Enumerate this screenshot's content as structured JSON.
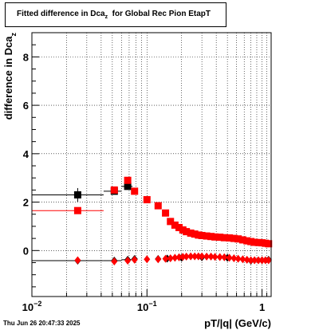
{
  "chart_data": {
    "type": "scatter",
    "title_parts": {
      "prefix": "Fitted difference in Dca",
      "subscript": "z",
      "suffix": "  for Global Rec Pion EtapT"
    },
    "xlabel": "pT/|q| (GeV/c)",
    "ylabel": "difference in Dca",
    "ylabel_subscript": "z",
    "x_scale": "log",
    "xlim": [
      0.01,
      1.2
    ],
    "ylim": [
      -1.9,
      9.0
    ],
    "grid": true,
    "y_ticks": [
      0,
      2,
      4,
      6,
      8
    ],
    "x_tick_labels": [
      {
        "value": 0.01,
        "base": "10",
        "exp": "−2"
      },
      {
        "value": 0.1,
        "base": "10",
        "exp": "−1"
      },
      {
        "value": 1,
        "base": "1",
        "exp": ""
      }
    ],
    "series": [
      {
        "marker": "square",
        "color": "#000000",
        "points": [
          {
            "x": 0.025,
            "y": 2.3,
            "xerr": [
              0.01,
              0.042
            ],
            "yerr": 0.28
          },
          {
            "x": 0.052,
            "y": 2.45,
            "xerr": [
              0.042,
              0.06
            ]
          },
          {
            "x": 0.068,
            "y": 2.65,
            "xerr": [
              0.06,
              0.075
            ]
          }
        ]
      },
      {
        "marker": "square",
        "color": "#ff0000",
        "points": [
          {
            "x": 0.025,
            "y": 1.65,
            "xerr": [
              0.01,
              0.042
            ]
          },
          {
            "x": 0.052,
            "y": 2.5
          },
          {
            "x": 0.068,
            "y": 2.9
          },
          {
            "x": 0.078,
            "y": 2.45
          },
          {
            "x": 0.1,
            "y": 2.1
          },
          {
            "x": 0.125,
            "y": 1.85
          },
          {
            "x": 0.145,
            "y": 1.55
          },
          {
            "x": 0.16,
            "y": 1.2
          },
          {
            "x": 0.175,
            "y": 1.05
          },
          {
            "x": 0.19,
            "y": 0.95
          },
          {
            "x": 0.205,
            "y": 0.85
          },
          {
            "x": 0.22,
            "y": 0.78
          },
          {
            "x": 0.24,
            "y": 0.72
          },
          {
            "x": 0.26,
            "y": 0.68
          },
          {
            "x": 0.28,
            "y": 0.64
          },
          {
            "x": 0.3,
            "y": 0.62
          },
          {
            "x": 0.33,
            "y": 0.6
          },
          {
            "x": 0.36,
            "y": 0.58
          },
          {
            "x": 0.39,
            "y": 0.56
          },
          {
            "x": 0.43,
            "y": 0.55
          },
          {
            "x": 0.47,
            "y": 0.53
          },
          {
            "x": 0.52,
            "y": 0.52
          },
          {
            "x": 0.57,
            "y": 0.5
          },
          {
            "x": 0.62,
            "y": 0.48
          },
          {
            "x": 0.68,
            "y": 0.44
          },
          {
            "x": 0.74,
            "y": 0.4
          },
          {
            "x": 0.8,
            "y": 0.37
          },
          {
            "x": 0.86,
            "y": 0.34
          },
          {
            "x": 0.93,
            "y": 0.33
          },
          {
            "x": 1.0,
            "y": 0.32
          },
          {
            "x": 1.07,
            "y": 0.3
          },
          {
            "x": 1.14,
            "y": 0.28
          }
        ]
      },
      {
        "marker": "diamond",
        "color": "#000000",
        "points": [
          {
            "x": 0.025,
            "y": -0.42,
            "xerr": [
              0.01,
              0.042
            ]
          },
          {
            "x": 0.052,
            "y": -0.42,
            "xerr": [
              0.042,
              0.06
            ]
          },
          {
            "x": 0.068,
            "y": -0.38,
            "xerr": [
              0.06,
              0.075
            ]
          },
          {
            "x": 0.078,
            "y": -0.35
          },
          {
            "x": 0.125,
            "y": -0.35
          },
          {
            "x": 0.15,
            "y": -0.33
          },
          {
            "x": 0.2,
            "y": -0.3
          },
          {
            "x": 0.3,
            "y": -0.28
          },
          {
            "x": 0.5,
            "y": -0.3
          },
          {
            "x": 0.8,
            "y": -0.42
          },
          {
            "x": 1.0,
            "y": -0.4
          },
          {
            "x": 1.14,
            "y": -0.38
          }
        ]
      },
      {
        "marker": "diamond",
        "color": "#ff0000",
        "points": [
          {
            "x": 0.025,
            "y": -0.4
          },
          {
            "x": 0.052,
            "y": -0.45
          },
          {
            "x": 0.068,
            "y": -0.42
          },
          {
            "x": 0.078,
            "y": -0.38
          },
          {
            "x": 0.1,
            "y": -0.36
          },
          {
            "x": 0.125,
            "y": -0.36
          },
          {
            "x": 0.145,
            "y": -0.34
          },
          {
            "x": 0.16,
            "y": -0.32
          },
          {
            "x": 0.175,
            "y": -0.3
          },
          {
            "x": 0.19,
            "y": -0.28
          },
          {
            "x": 0.205,
            "y": -0.26
          },
          {
            "x": 0.22,
            "y": -0.25
          },
          {
            "x": 0.24,
            "y": -0.24
          },
          {
            "x": 0.26,
            "y": -0.24
          },
          {
            "x": 0.28,
            "y": -0.24
          },
          {
            "x": 0.3,
            "y": -0.24
          },
          {
            "x": 0.33,
            "y": -0.25
          },
          {
            "x": 0.36,
            "y": -0.25
          },
          {
            "x": 0.39,
            "y": -0.26
          },
          {
            "x": 0.43,
            "y": -0.27
          },
          {
            "x": 0.47,
            "y": -0.28
          },
          {
            "x": 0.52,
            "y": -0.3
          },
          {
            "x": 0.57,
            "y": -0.32
          },
          {
            "x": 0.62,
            "y": -0.34
          },
          {
            "x": 0.68,
            "y": -0.36
          },
          {
            "x": 0.74,
            "y": -0.38
          },
          {
            "x": 0.8,
            "y": -0.4
          },
          {
            "x": 0.86,
            "y": -0.4
          },
          {
            "x": 0.93,
            "y": -0.4
          },
          {
            "x": 1.0,
            "y": -0.4
          },
          {
            "x": 1.07,
            "y": -0.4
          },
          {
            "x": 1.14,
            "y": -0.4
          }
        ]
      }
    ]
  },
  "footer": {
    "date": "Thu Jun 26 20:47:33 2025"
  }
}
